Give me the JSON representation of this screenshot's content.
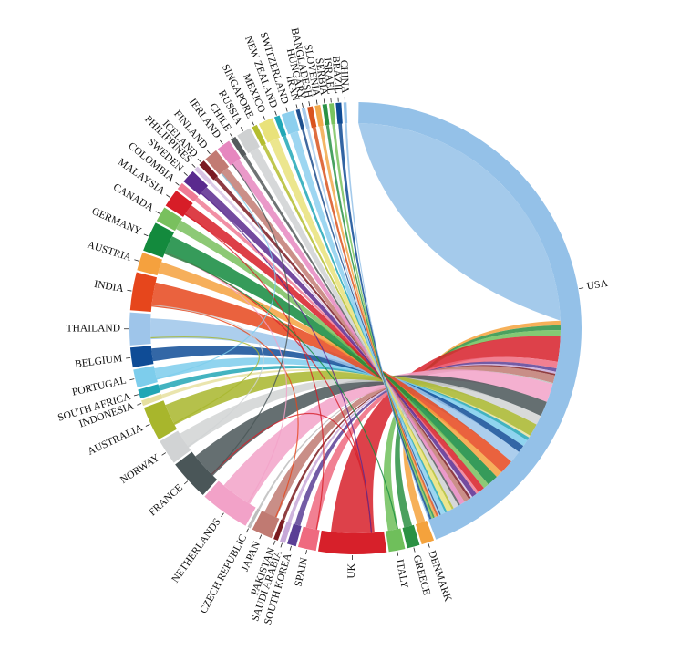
{
  "diagram": {
    "type": "chord",
    "countries": [
      {
        "name": "USA",
        "color": "#94c1e8",
        "weight": 68
      },
      {
        "name": "DENMARK",
        "color": "#f4a23c",
        "weight": 1.4
      },
      {
        "name": "GREECE",
        "color": "#2b9143",
        "weight": 1.4
      },
      {
        "name": "ITALY",
        "color": "#6fbf5b",
        "weight": 1.8
      },
      {
        "name": "UK",
        "color": "#d7202a",
        "weight": 7.5
      },
      {
        "name": "SPAIN",
        "color": "#ef6a7f",
        "weight": 2
      },
      {
        "name": "SOUTH KOREA",
        "color": "#5a3f95",
        "weight": 1
      },
      {
        "name": "SAUDI ARABIA",
        "color": "#c7a8d8",
        "weight": 0.6
      },
      {
        "name": "PAKISTAN",
        "color": "#7b1c20",
        "weight": 0.5
      },
      {
        "name": "JAPAN",
        "color": "#c07a72",
        "weight": 2.3
      },
      {
        "name": "CZECH REPUBLIC",
        "color": "#bdbdbd",
        "weight": 0.3
      },
      {
        "name": "NETHERLANDS",
        "color": "#f2a2c8",
        "weight": 5.5
      },
      {
        "name": "FRANCE",
        "color": "#4a5658",
        "weight": 4.5
      },
      {
        "name": "NORWAY",
        "color": "#d1d3d4",
        "weight": 2.8
      },
      {
        "name": "AUSTRALIA",
        "color": "#a8b62c",
        "weight": 3.8
      },
      {
        "name": "INDONESIA",
        "color": "#e6e0a0",
        "weight": 0.6
      },
      {
        "name": "SOUTH AFRICA",
        "color": "#22a6b5",
        "weight": 1
      },
      {
        "name": "PORTUGAL",
        "color": "#7dcdec",
        "weight": 2
      },
      {
        "name": "BELGIUM",
        "color": "#0f4c96",
        "weight": 2.2
      },
      {
        "name": "THAILAND",
        "color": "#9ec5ea",
        "weight": 3.6
      },
      {
        "name": "INDIA",
        "color": "#e6461c",
        "weight": 4.2
      },
      {
        "name": "AUSTRIA",
        "color": "#f5a13e",
        "weight": 2
      },
      {
        "name": "GERMANY",
        "color": "#138a3d",
        "weight": 3.3
      },
      {
        "name": "CANADA",
        "color": "#79c05e",
        "weight": 1.7
      },
      {
        "name": "MALAYSIA",
        "color": "#d71d27",
        "weight": 2
      },
      {
        "name": "COLOMBIA",
        "color": "#ef7b95",
        "weight": 0.8
      },
      {
        "name": "SWEDEN",
        "color": "#5a2a8e",
        "weight": 1.5
      },
      {
        "name": "PHILIPPINES",
        "color": "#d8c3e3",
        "weight": 0.5
      },
      {
        "name": "ICELAND",
        "color": "#7a1a22",
        "weight": 0.7
      },
      {
        "name": "FINLAND",
        "color": "#c27b73",
        "weight": 1.5
      },
      {
        "name": "IERLAND",
        "color": "#e687bf",
        "weight": 1.5
      },
      {
        "name": "CHILE",
        "color": "#555a5c",
        "weight": 0.6
      },
      {
        "name": "RUSSIA",
        "color": "#cfd1d2",
        "weight": 1.6
      },
      {
        "name": "SINGAPORE",
        "color": "#b4bd2f",
        "weight": 0.6
      },
      {
        "name": "MEXICO",
        "color": "#e9e27a",
        "weight": 1.6
      },
      {
        "name": "NEW ZEALAND",
        "color": "#21a7b6",
        "weight": 0.6
      },
      {
        "name": "SWITZERLAND",
        "color": "#8ccfee",
        "weight": 1.4
      },
      {
        "name": "IRAN",
        "color": "#1f4f8e",
        "weight": 0.4
      },
      {
        "name": "HUNGARY",
        "color": "#a7c9ea",
        "weight": 0.4
      },
      {
        "name": "BANGLADESH",
        "color": "#d9541e",
        "weight": 0.6
      },
      {
        "name": "SLOVENIA",
        "color": "#f1a84a",
        "weight": 0.6
      },
      {
        "name": "SERBIA",
        "color": "#2a9245",
        "weight": 0.5
      },
      {
        "name": "ISRAEL",
        "color": "#7ac35f",
        "weight": 0.5
      },
      {
        "name": "BRAZIL",
        "color": "#0e4a94",
        "weight": 0.6
      },
      {
        "name": "CHINA",
        "color": "#94c1e8",
        "weight": 0.0
      }
    ]
  }
}
